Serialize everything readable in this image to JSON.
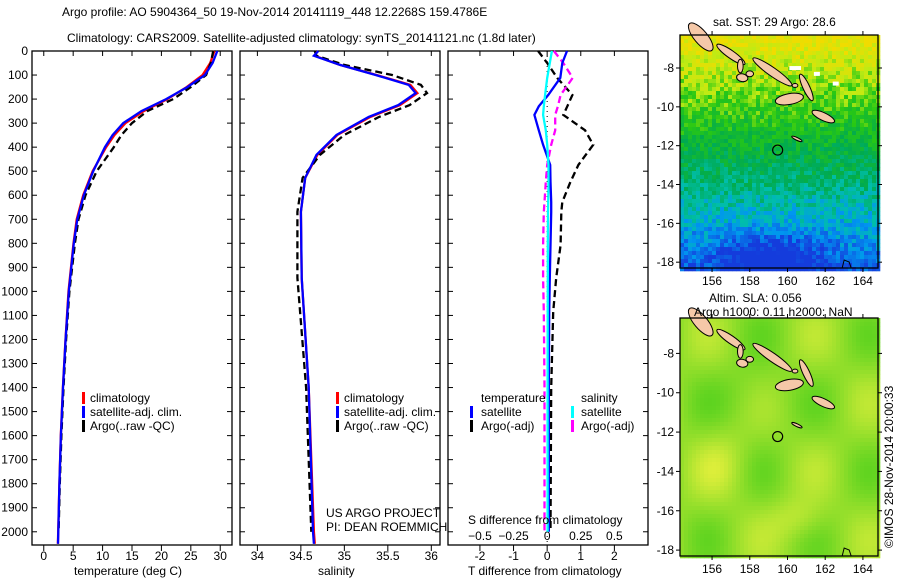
{
  "header": {
    "title_line1": "Argo profile: AO 5904364_50 19-Nov-2014 20141119_448 12.2268S 159.4786E",
    "title_line2": "Climatology: CARS2009. Satellite-adjusted climatology: synTS_20141121.nc (1.8d later)"
  },
  "credits": {
    "project": "US ARGO PROJECT",
    "pi": "PI: DEAN ROEMMICH",
    "stamp": "©IMOS 28-Nov-2014 20:00:33"
  },
  "colors": {
    "climatology": "#ff0000",
    "satellite": "#0000ff",
    "argo": "#000000",
    "sal_satellite": "#00ffff",
    "sal_argo": "#ff00ff",
    "land": "#f5c8a8"
  },
  "chart_data": [
    {
      "type": "line",
      "id": "temperature",
      "xlabel": "temperature (deg C)",
      "ylabel": "",
      "xlim": [
        -2,
        32
      ],
      "ylim": [
        2055,
        0
      ],
      "xticks": [
        0,
        5,
        10,
        15,
        20,
        25,
        30
      ],
      "yticks": [
        0,
        100,
        200,
        300,
        400,
        500,
        600,
        700,
        800,
        900,
        1000,
        1100,
        1200,
        1300,
        1400,
        1500,
        1600,
        1700,
        1800,
        1900,
        2000
      ],
      "legend": [
        "climatology",
        "satellite-adj. clim.",
        "Argo(..raw -QC)"
      ],
      "depth": [
        0,
        50,
        100,
        150,
        200,
        250,
        300,
        350,
        400,
        500,
        600,
        700,
        800,
        1000,
        1200,
        1400,
        1600,
        1800,
        2000,
        2050
      ],
      "series": [
        {
          "name": "climatology",
          "values": [
            29.0,
            28.3,
            27.0,
            24.3,
            21.0,
            17.0,
            13.9,
            12.0,
            10.6,
            8.3,
            6.7,
            5.6,
            5.05,
            4.2,
            3.7,
            3.25,
            2.9,
            2.65,
            2.45,
            2.4
          ]
        },
        {
          "name": "satellite-adj. clim.",
          "values": [
            29.5,
            28.7,
            27.4,
            24.4,
            20.8,
            16.6,
            13.5,
            11.7,
            10.4,
            8.4,
            6.8,
            5.7,
            5.1,
            4.25,
            3.72,
            3.27,
            2.92,
            2.66,
            2.47,
            2.42
          ]
        },
        {
          "name": "Argo(..raw -QC)",
          "values": [
            28.8,
            28.4,
            27.6,
            25.0,
            22.0,
            17.6,
            15.0,
            13.2,
            11.9,
            9.0,
            7.1,
            5.9,
            5.3,
            4.35,
            3.8,
            3.35,
            3.0,
            2.73,
            2.52
          ]
        }
      ]
    },
    {
      "type": "line",
      "id": "salinity",
      "xlabel": "salinity",
      "xlim": [
        33.8,
        36.1
      ],
      "ylim": [
        2055,
        0
      ],
      "xticks": [
        34,
        34.5,
        35,
        35.5,
        36
      ],
      "legend": [
        "climatology",
        "satellite-adj. clim.",
        "Argo(..raw -QC)"
      ],
      "depth": [
        0,
        20,
        58,
        100,
        141,
        175,
        225,
        274,
        349,
        432,
        528,
        669,
        944,
        1400,
        2000,
        2050
      ],
      "series": [
        {
          "name": "climatology",
          "values": [
            34.68,
            34.66,
            34.95,
            35.37,
            35.76,
            35.84,
            35.64,
            35.3,
            34.92,
            34.69,
            34.55,
            34.5,
            34.51,
            34.59,
            34.65,
            34.66
          ]
        },
        {
          "name": "satellite-adj. clim.",
          "values": [
            34.7,
            34.65,
            34.95,
            35.36,
            35.74,
            35.82,
            35.62,
            35.28,
            34.91,
            34.68,
            34.55,
            34.5,
            34.51,
            34.59,
            34.64,
            34.65
          ]
        },
        {
          "name": "Argo(..raw -QC)",
          "values": [
            34.66,
            34.68,
            35.0,
            35.55,
            35.88,
            35.95,
            35.75,
            35.4,
            35.0,
            34.72,
            34.52,
            34.46,
            34.46,
            34.56,
            34.62
          ]
        }
      ]
    },
    {
      "type": "line",
      "id": "differences",
      "xlabel": "T difference from climatology",
      "x2label": "S difference from climatology",
      "xlim": [
        -2.95,
        3.0
      ],
      "x2lim": [
        -0.7375,
        0.75
      ],
      "ylim": [
        2055,
        0
      ],
      "xticks": [
        -2,
        -1,
        0,
        1,
        2
      ],
      "x2ticks": [
        "-0.5",
        "-0.25",
        "0",
        "0.25",
        "0.5"
      ],
      "legend_temperature_title": "temperature",
      "legend_salinity_title": "salinity",
      "legend": [
        "satellite",
        "Argo(-adj)",
        "satellite",
        "Argo(-adj)"
      ],
      "depth": [
        0,
        50,
        112,
        183,
        230,
        266,
        330,
        390,
        474,
        545,
        628,
        670,
        807,
        944,
        1085,
        1400,
        2000
      ],
      "series": [
        {
          "name": "temperature satellite",
          "axis": "T",
          "values": [
            0.59,
            0.45,
            0.39,
            0.03,
            -0.25,
            -0.38,
            -0.25,
            -0.12,
            0.09,
            0.1,
            0.12,
            0.12,
            0.1,
            0.08,
            0.06,
            0.05,
            0.05
          ]
        },
        {
          "name": "temperature Argo(-adj)",
          "axis": "T",
          "values": [
            -0.27,
            0.0,
            0.3,
            0.75,
            0.6,
            0.48,
            1.13,
            1.37,
            0.93,
            0.69,
            0.45,
            0.42,
            0.4,
            0.27,
            0.18,
            0.12,
            0.1
          ]
        },
        {
          "name": "salinity satellite",
          "axis": "S",
          "values": [
            0.035,
            0.02,
            0.0,
            -0.015,
            -0.025,
            -0.03,
            -0.01,
            0.0,
            0.01,
            0.01,
            0.008,
            0.006,
            0.005,
            0.005,
            0.004,
            0.003,
            0.003
          ]
        },
        {
          "name": "salinity Argo(-adj)",
          "axis": "S",
          "values": [
            0.05,
            0.12,
            0.19,
            0.1,
            0.08,
            0.06,
            0.06,
            0.03,
            0.0,
            -0.01,
            -0.02,
            -0.025,
            -0.03,
            -0.03,
            -0.025,
            -0.02,
            -0.02
          ]
        }
      ]
    }
  ],
  "maps": [
    {
      "id": "sst",
      "title": "sat. SST: 29 Argo: 28.6",
      "lon_ticks": [
        156,
        158,
        160,
        162,
        164
      ],
      "lat_ticks": [
        -8,
        -10,
        -12,
        -14,
        -16,
        -18
      ],
      "argo_lon": 159.4786,
      "argo_lat": -12.2268
    },
    {
      "id": "sla",
      "title_line1": "Altim. SLA: 0.056",
      "title_line2": "Argo h1000: 0.11 h2000: NaN",
      "lon_ticks": [
        156,
        158,
        160,
        162,
        164
      ],
      "lat_ticks": [
        -8,
        -10,
        -12,
        -14,
        -16,
        -18
      ],
      "argo_lon": 159.4786,
      "argo_lat": -12.2268
    }
  ]
}
